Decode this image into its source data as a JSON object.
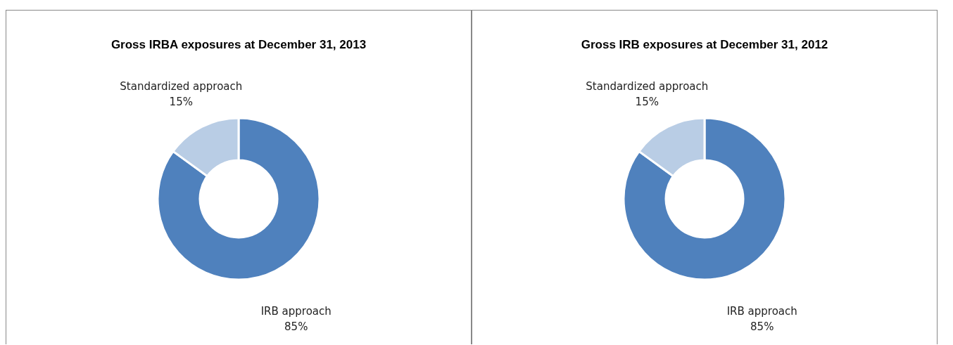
{
  "chart_data": [
    {
      "type": "donut",
      "title": "Gross IRBA  exposures at December 31, 2013",
      "categories": [
        "IRB approach",
        "Standardized approach"
      ],
      "values": [
        85,
        15
      ],
      "colors": [
        "#4f81bd",
        "#b9cde5"
      ],
      "value_labels": [
        "85%",
        "15%"
      ]
    },
    {
      "type": "donut",
      "title": "Gross IRB  exposures at December 31, 2012",
      "categories": [
        "IRB approach",
        "Standardized approach"
      ],
      "values": [
        85,
        15
      ],
      "colors": [
        "#4f81bd",
        "#b9cde5"
      ],
      "value_labels": [
        "85%",
        "15%"
      ]
    }
  ]
}
